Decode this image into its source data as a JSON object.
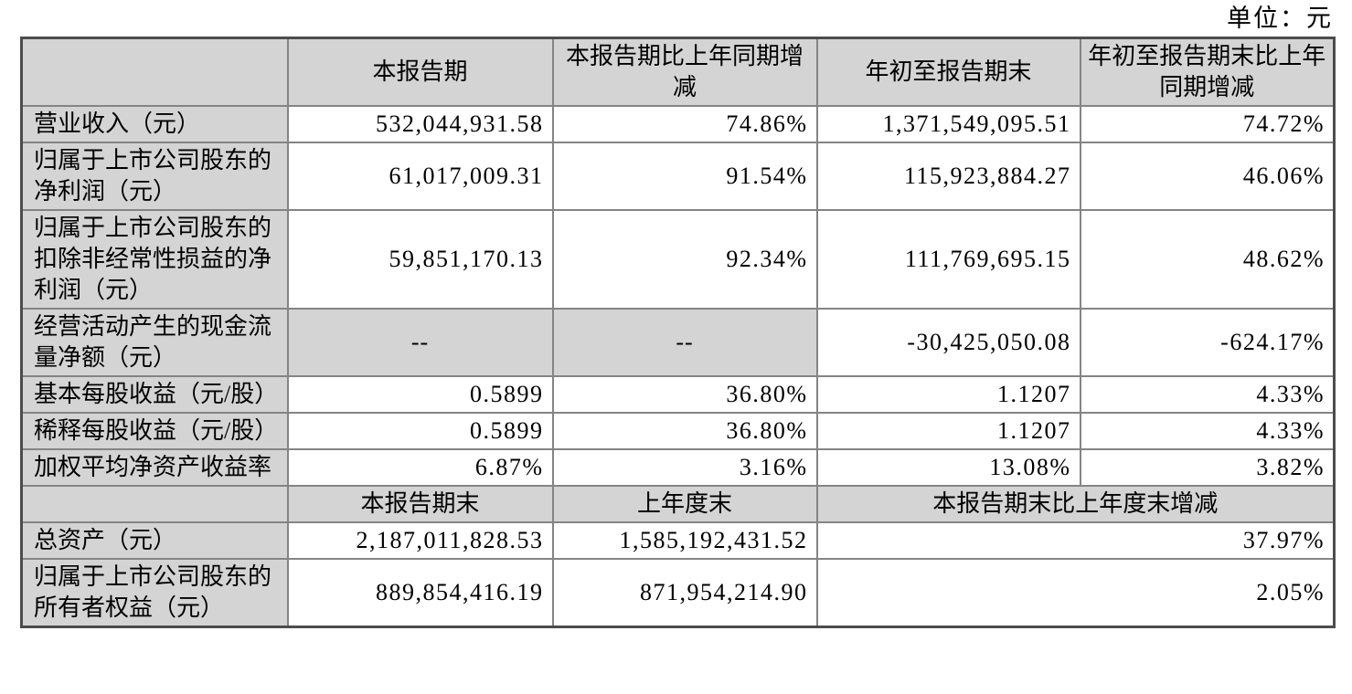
{
  "unit_label": "单位：元",
  "colors": {
    "header_bg": "#d4d4d4",
    "border": "#848484",
    "outer_border": "#4c4c4c",
    "text": "#000000"
  },
  "table": {
    "header_row": [
      "",
      "本报告期",
      "本报告期比上年同期增减",
      "年初至报告期末",
      "年初至报告期末比上年同期增减"
    ],
    "rows": [
      {
        "label": "营业收入（元）",
        "cells": [
          {
            "v": "532,044,931.58",
            "t": "num"
          },
          {
            "v": "74.86%",
            "t": "num"
          },
          {
            "v": "1,371,549,095.51",
            "t": "num"
          },
          {
            "v": "74.72%",
            "t": "num"
          }
        ]
      },
      {
        "label": "归属于上市公司股东的净利润（元）",
        "cells": [
          {
            "v": "61,017,009.31",
            "t": "num"
          },
          {
            "v": "91.54%",
            "t": "num"
          },
          {
            "v": "115,923,884.27",
            "t": "num"
          },
          {
            "v": "46.06%",
            "t": "num"
          }
        ]
      },
      {
        "label": "归属于上市公司股东的扣除非经常性损益的净利润（元）",
        "cells": [
          {
            "v": "59,851,170.13",
            "t": "num"
          },
          {
            "v": "92.34%",
            "t": "num"
          },
          {
            "v": "111,769,695.15",
            "t": "num"
          },
          {
            "v": "48.62%",
            "t": "num"
          }
        ]
      },
      {
        "label": "经营活动产生的现金流量净额（元）",
        "cells": [
          {
            "v": "--",
            "t": "dash"
          },
          {
            "v": "--",
            "t": "dash"
          },
          {
            "v": "-30,425,050.08",
            "t": "num"
          },
          {
            "v": "-624.17%",
            "t": "num"
          }
        ]
      },
      {
        "label": "基本每股收益（元/股）",
        "cells": [
          {
            "v": "0.5899",
            "t": "num"
          },
          {
            "v": "36.80%",
            "t": "num"
          },
          {
            "v": "1.1207",
            "t": "num"
          },
          {
            "v": "4.33%",
            "t": "num"
          }
        ]
      },
      {
        "label": "稀释每股收益（元/股）",
        "cells": [
          {
            "v": "0.5899",
            "t": "num"
          },
          {
            "v": "36.80%",
            "t": "num"
          },
          {
            "v": "1.1207",
            "t": "num"
          },
          {
            "v": "4.33%",
            "t": "num"
          }
        ]
      },
      {
        "label": "加权平均净资产收益率",
        "cells": [
          {
            "v": "6.87%",
            "t": "num"
          },
          {
            "v": "3.16%",
            "t": "num"
          },
          {
            "v": "13.08%",
            "t": "num"
          },
          {
            "v": "3.82%",
            "t": "num"
          }
        ]
      }
    ],
    "section2_header": {
      "label": "",
      "cells": [
        {
          "v": "本报告期末",
          "t": "header"
        },
        {
          "v": "上年度末",
          "t": "header"
        },
        {
          "v": "本报告期末比上年度末增减",
          "t": "header",
          "colspan": 2
        }
      ]
    },
    "section2_rows": [
      {
        "label": "总资产（元）",
        "cells": [
          {
            "v": "2,187,011,828.53",
            "t": "num"
          },
          {
            "v": "1,585,192,431.52",
            "t": "num"
          },
          {
            "v": "37.97%",
            "t": "num",
            "colspan": 2
          }
        ]
      },
      {
        "label": "归属于上市公司股东的所有者权益（元）",
        "cells": [
          {
            "v": "889,854,416.19",
            "t": "num"
          },
          {
            "v": "871,954,214.90",
            "t": "num"
          },
          {
            "v": "2.05%",
            "t": "num",
            "colspan": 2
          }
        ]
      }
    ]
  }
}
